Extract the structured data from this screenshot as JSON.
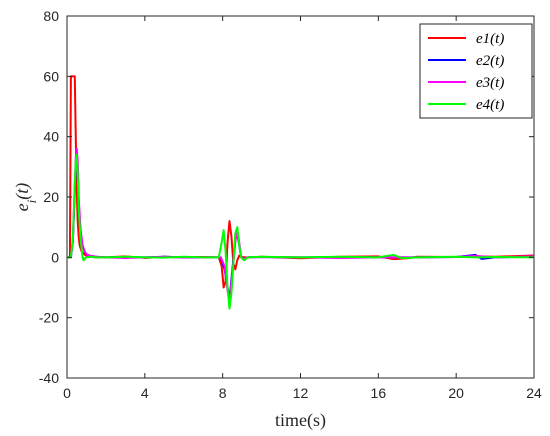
{
  "chart_data": {
    "type": "line",
    "title": "",
    "xlabel": "time(s)",
    "ylabel": "e_i(t)",
    "xlim": [
      0,
      24
    ],
    "ylim": [
      -40,
      80
    ],
    "xticks": [
      0,
      4,
      8,
      12,
      16,
      20,
      24
    ],
    "yticks": [
      -40,
      -20,
      0,
      20,
      40,
      60,
      80
    ],
    "xtick_labels": [
      "0",
      "4",
      "8",
      "12",
      "16",
      "20",
      "24"
    ],
    "ytick_labels": [
      "-40",
      "-20",
      "0",
      "20",
      "40",
      "60",
      "80"
    ],
    "grid": false,
    "legend_position": "top-right",
    "series": [
      {
        "name": "e1(t)",
        "color": "#ff0000",
        "x": [
          0,
          0.15,
          0.2,
          0.25,
          0.3,
          0.35,
          0.4,
          0.45,
          0.5,
          0.55,
          0.6,
          0.65,
          0.7,
          0.75,
          0.8,
          0.9,
          1.0,
          1.2,
          1.5,
          2.0,
          3.0,
          4.0,
          5.0,
          6.0,
          7.0,
          7.8,
          7.95,
          8.05,
          8.15,
          8.25,
          8.35,
          8.45,
          8.55,
          8.65,
          8.75,
          8.85,
          8.95,
          9.1,
          9.3,
          10,
          12,
          14,
          16,
          16.8,
          17.5,
          18,
          20,
          21,
          22,
          23,
          24
        ],
        "y": [
          0,
          0,
          60,
          60,
          60,
          60,
          60,
          40,
          22,
          12,
          7,
          4,
          3,
          2,
          1.5,
          1,
          0.5,
          0.2,
          0,
          0,
          0.3,
          -0.2,
          0.2,
          0,
          0.1,
          0,
          -3,
          -10,
          -8,
          5,
          12,
          7,
          -2,
          -4,
          -1,
          0.5,
          0.2,
          0,
          0,
          0.2,
          -0.3,
          0.2,
          0.3,
          -0.6,
          -0.3,
          0.2,
          0.1,
          0.3,
          0.2,
          0.4,
          0.6
        ]
      },
      {
        "name": "e2(t)",
        "color": "#0000ff",
        "x": [
          0,
          0.2,
          0.3,
          0.4,
          0.45,
          0.5,
          0.55,
          0.6,
          0.7,
          0.8,
          0.9,
          1.0,
          1.2,
          1.5,
          2,
          3,
          4,
          5,
          6,
          7,
          7.9,
          8.1,
          8.25,
          8.35,
          8.5,
          8.65,
          8.75,
          8.85,
          8.95,
          9.1,
          9.3,
          10,
          12,
          14,
          16,
          18,
          20,
          21,
          21.3,
          22,
          24
        ],
        "y": [
          0,
          0,
          5,
          22,
          30,
          34,
          30,
          18,
          8,
          4,
          2,
          1,
          0.5,
          0.2,
          0,
          0.1,
          0,
          0.2,
          0,
          0,
          0,
          -4,
          -10,
          -14,
          -4,
          6,
          8,
          4,
          0,
          -0.5,
          0,
          0.1,
          0,
          0.1,
          0,
          0,
          0.1,
          0.8,
          -0.5,
          0,
          0.2
        ]
      },
      {
        "name": "e3(t)",
        "color": "#ff00ff",
        "x": [
          0,
          0.2,
          0.3,
          0.4,
          0.45,
          0.5,
          0.55,
          0.6,
          0.7,
          0.8,
          0.9,
          1.0,
          1.2,
          1.5,
          2,
          3,
          4,
          5,
          6,
          7,
          7.9,
          8.1,
          8.25,
          8.35,
          8.5,
          8.65,
          8.75,
          8.85,
          8.95,
          9.1,
          9.3,
          10,
          12,
          14,
          16,
          18,
          20,
          21,
          22,
          24
        ],
        "y": [
          0,
          0,
          6,
          24,
          33,
          36,
          32,
          20,
          9,
          4,
          2,
          1,
          0.5,
          0.2,
          0,
          -0.2,
          0,
          0.1,
          0,
          0,
          0,
          -3,
          -11,
          -15,
          -5,
          5,
          9,
          5,
          0,
          -0.5,
          0,
          0.1,
          0,
          -0.2,
          0,
          0,
          0.1,
          0.5,
          0,
          0.3
        ]
      },
      {
        "name": "e4(t)",
        "color": "#00ff00",
        "x": [
          0,
          0.2,
          0.3,
          0.4,
          0.45,
          0.5,
          0.55,
          0.6,
          0.7,
          0.8,
          0.85,
          0.9,
          1.0,
          1.2,
          1.5,
          2,
          3,
          4,
          5,
          6,
          7,
          7.8,
          7.95,
          8.05,
          8.15,
          8.25,
          8.35,
          8.45,
          8.55,
          8.65,
          8.75,
          8.85,
          8.95,
          9.1,
          9.3,
          10,
          12,
          14,
          16,
          16.8,
          17.2,
          18,
          20,
          21,
          22,
          24
        ],
        "y": [
          0,
          0,
          6,
          24,
          32,
          34,
          28,
          16,
          6,
          0,
          -1,
          -0.5,
          0,
          0.2,
          0,
          0,
          0.2,
          0,
          -0.1,
          0.2,
          0,
          0,
          5,
          9,
          2,
          -10,
          -17,
          -12,
          -2,
          8,
          10,
          4,
          0,
          -1,
          0,
          0.2,
          0,
          0.2,
          0,
          0.8,
          -0.3,
          0,
          0.2,
          0,
          0.1,
          0
        ]
      }
    ]
  }
}
